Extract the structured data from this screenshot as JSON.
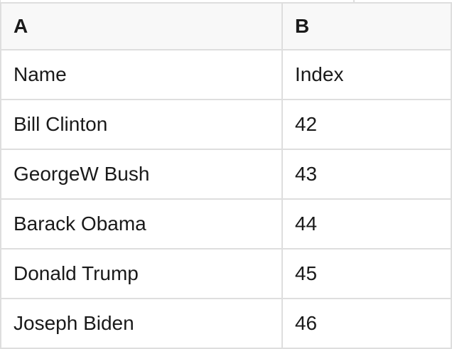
{
  "colors": {
    "border": "#dedede",
    "header_bg": "#f8f8f8",
    "text": "#1a1a1a",
    "cell_bg": "#ffffff"
  },
  "spreadsheet": {
    "column_headers": [
      "A",
      "B"
    ],
    "rows": [
      {
        "cells": [
          "Name",
          "Index"
        ]
      },
      {
        "cells": [
          "Bill Clinton",
          "42"
        ]
      },
      {
        "cells": [
          "GeorgeW Bush",
          "43"
        ]
      },
      {
        "cells": [
          "Barack Obama",
          "44"
        ]
      },
      {
        "cells": [
          "Donald Trump",
          "45"
        ]
      },
      {
        "cells": [
          "Joseph Biden",
          "46"
        ]
      }
    ]
  }
}
